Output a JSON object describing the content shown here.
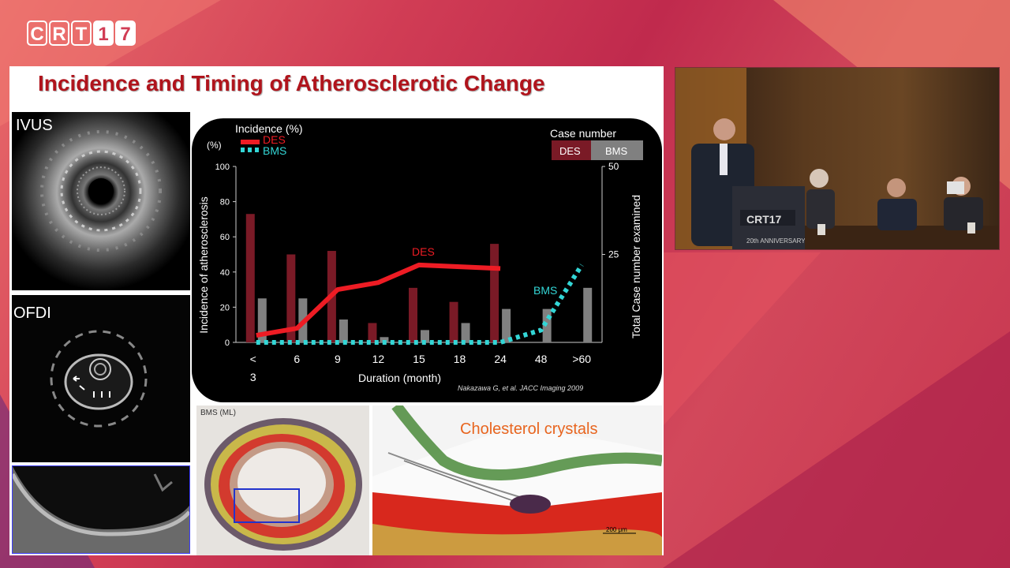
{
  "logo": {
    "letters": [
      "C",
      "R",
      "T",
      "1",
      "7"
    ]
  },
  "slide": {
    "title": "Incidence and Timing of Atherosclerotic Change",
    "ivus_label": "IVUS",
    "ofdi_label": "OFDI",
    "histology_left_label": "BMS (ML)",
    "histology_right_label": "Cholesterol crystals",
    "scale_bar_label": "200 μm",
    "citation": "Nakazawa G, et al. JACC Imaging 2009"
  },
  "podium": {
    "logo_text": "CRT17",
    "anniversary": "20th ANNIVERSARY"
  },
  "chart_data": {
    "type": "bar",
    "legend_title": "Incidence (%)",
    "y_unit_label": "(%)",
    "case_number_title": "Case number",
    "categories": [
      "< 3",
      "6",
      "9",
      "12",
      "15",
      "18",
      "24",
      "48",
      ">60"
    ],
    "xlabel": "Duration (month)",
    "ylabel": "Incidence of atherosclerosis",
    "y2label": "Total Case number examined",
    "ylim": [
      0,
      100
    ],
    "y2lim": [
      0,
      50
    ],
    "yticks": [
      0,
      20,
      40,
      60,
      80,
      100
    ],
    "y2ticks": [
      25,
      50
    ],
    "bars": [
      {
        "name": "DES",
        "color": "#7a1a26",
        "values": [
          73,
          50,
          52,
          11,
          31,
          23,
          56,
          null,
          null
        ]
      },
      {
        "name": "BMS",
        "color": "#808080",
        "values": [
          25,
          25,
          13,
          3,
          7,
          11,
          19,
          19,
          31
        ]
      }
    ],
    "lines": [
      {
        "name": "DES",
        "color": "#ee1c24",
        "style": "solid",
        "values": [
          4,
          8,
          30,
          34,
          44,
          43,
          42,
          null,
          null
        ]
      },
      {
        "name": "BMS",
        "color": "#33d6d6",
        "style": "dotted",
        "values": [
          0,
          0,
          0,
          0,
          0,
          0,
          0,
          7,
          44
        ]
      }
    ],
    "line_labels": {
      "des": "DES",
      "bms": "BMS"
    }
  }
}
